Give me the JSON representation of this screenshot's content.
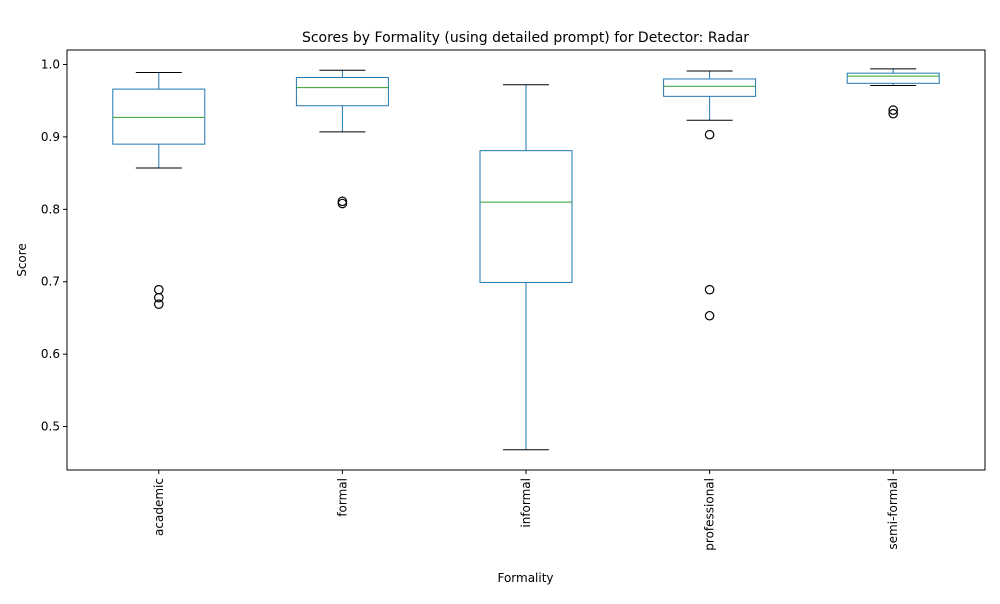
{
  "chart_data": {
    "type": "box",
    "title": "Scores by Formality (using detailed prompt) for Detector: Radar",
    "xlabel": "Formality",
    "ylabel": "Score",
    "ylim": [
      0.44,
      1.02
    ],
    "y_ticks": [
      0.5,
      0.6,
      0.7,
      0.8,
      0.9,
      1.0
    ],
    "y_tick_labels": [
      "0.5",
      "0.6",
      "0.7",
      "0.8",
      "0.9",
      "1.0"
    ],
    "grid": false,
    "legend": "none",
    "x_tick_rotation": "vertical",
    "colors": {
      "box": "#1f77b4",
      "median": "#2ca02c",
      "whisker": "#1f77b4",
      "cap": "#000000",
      "flier": "#000000"
    },
    "categories": [
      "academic",
      "formal",
      "informal",
      "professional",
      "semi-formal"
    ],
    "boxes": [
      {
        "category": "academic",
        "whislo": 0.857,
        "q1": 0.89,
        "med": 0.927,
        "q3": 0.966,
        "whishi": 0.989,
        "fliers": [
          0.689,
          0.678,
          0.669
        ]
      },
      {
        "category": "formal",
        "whislo": 0.907,
        "q1": 0.943,
        "med": 0.968,
        "q3": 0.982,
        "whishi": 0.992,
        "fliers": [
          0.811,
          0.808
        ]
      },
      {
        "category": "informal",
        "whislo": 0.468,
        "q1": 0.699,
        "med": 0.81,
        "q3": 0.881,
        "whishi": 0.972,
        "fliers": []
      },
      {
        "category": "professional",
        "whislo": 0.923,
        "q1": 0.956,
        "med": 0.97,
        "q3": 0.98,
        "whishi": 0.991,
        "fliers": [
          0.903,
          0.689,
          0.653
        ]
      },
      {
        "category": "semi-formal",
        "whislo": 0.971,
        "q1": 0.974,
        "med": 0.984,
        "q3": 0.988,
        "whishi": 0.994,
        "fliers": [
          0.937,
          0.932
        ]
      }
    ]
  }
}
